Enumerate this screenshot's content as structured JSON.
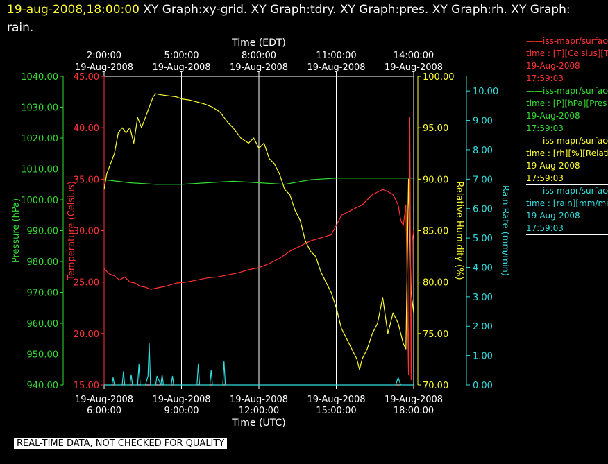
{
  "header": {
    "timestamp": "19-aug-2008,18:00:00",
    "graphs_line1": "XY Graph:xy-grid.  XY Graph:tdry.  XY Graph:pres.  XY Graph:rh.  XY Graph:",
    "graphs_line2": "rain."
  },
  "legend": [
    {
      "line1": "——iss-mapr/surface",
      "line2": "time : [T][Celsius][T",
      "date": "19-Aug-2008",
      "time": "17:59:03",
      "color": "#ff3333"
    },
    {
      "line1": "——iss-mapr/surface",
      "line2": "time : [P][hPa][Pres",
      "date": "19-Aug-2008",
      "time": "17:59:03",
      "color": "#33dd33"
    },
    {
      "line1": "——iss-mapr/surface",
      "line2": "time : [rh][%][Relati",
      "date": "19-Aug-2008",
      "time": "17:59:03",
      "color": "#ffff33"
    },
    {
      "line1": "——iss-mapr/surface",
      "line2": "time : [rain][mm/mir",
      "date": "19-Aug-2008",
      "time": "17:59:03",
      "color": "#33dddd"
    }
  ],
  "footer_note": "REAL-TIME DATA, NOT CHECKED FOR QUALITY",
  "chart_data": {
    "type": "line",
    "top_axis": {
      "title": "Time (EDT)",
      "ticks": [
        {
          "time": "2:00:00",
          "date": "19-Aug-2008"
        },
        {
          "time": "5:00:00",
          "date": "19-Aug-2008"
        },
        {
          "time": "8:00:00",
          "date": "19-Aug-2008"
        },
        {
          "time": "11:00:00",
          "date": "19-Aug-2008"
        },
        {
          "time": "14:00:00",
          "date": "19-Aug-2008"
        }
      ]
    },
    "bottom_axis": {
      "title": "Time (UTC)",
      "range_hours": [
        6,
        18
      ],
      "ticks": [
        {
          "hour": 6,
          "date": "19-Aug-2008",
          "time": "6:00:00"
        },
        {
          "hour": 9,
          "date": "19-Aug-2008",
          "time": "9:00:00"
        },
        {
          "hour": 12,
          "date": "19-Aug-2008",
          "time": "12:00:00"
        },
        {
          "hour": 15,
          "date": "19-Aug-2008",
          "time": "15:00:00"
        },
        {
          "hour": 18,
          "date": "19-Aug-2008",
          "time": "18:00:00"
        }
      ]
    },
    "axes": [
      {
        "key": "pres",
        "label": "Pressure (hPa)",
        "color": "#33dd33",
        "range": [
          940,
          1040
        ],
        "ticks": [
          "940.00",
          "950.00",
          "960.00",
          "970.00",
          "980.00",
          "990.00",
          "1000.00",
          "1010.00",
          "1020.00",
          "1030.00",
          "1040.00"
        ]
      },
      {
        "key": "temp",
        "label": "Temperature (Celsius)",
        "color": "#ff3333",
        "range": [
          15,
          45
        ],
        "ticks": [
          "15.00",
          "20.00",
          "25.00",
          "30.00",
          "35.00",
          "40.00",
          "45.00"
        ]
      },
      {
        "key": "rh",
        "label": "Relative Humidity (%)",
        "color": "#ffff33",
        "range": [
          70,
          100
        ],
        "ticks": [
          "70.00",
          "75.00",
          "80.00",
          "85.00",
          "90.00",
          "95.00",
          "100.00"
        ]
      },
      {
        "key": "rain",
        "label": "Rain Rate (mm/min)",
        "color": "#33dddd",
        "range": [
          0,
          10.5
        ],
        "ticks": [
          "0.00",
          "1.00",
          "2.00",
          "3.00",
          "4.00",
          "5.00",
          "6.00",
          "7.00",
          "8.00",
          "9.00",
          "10.00"
        ]
      }
    ],
    "grid_vertical_hours": [
      9,
      12,
      15
    ],
    "series": [
      {
        "name": "rh",
        "axis": "rh",
        "color": "#ffff33",
        "x": [
          6.0,
          6.1,
          6.25,
          6.4,
          6.55,
          6.7,
          6.85,
          7.0,
          7.15,
          7.3,
          7.45,
          7.6,
          7.75,
          7.9,
          8.0,
          8.2,
          8.5,
          8.8,
          9.0,
          9.3,
          9.6,
          9.9,
          10.2,
          10.5,
          10.8,
          11.0,
          11.3,
          11.6,
          11.8,
          12.0,
          12.2,
          12.4,
          12.6,
          12.8,
          13.0,
          13.2,
          13.4,
          13.6,
          13.8,
          14.0,
          14.2,
          14.4,
          14.6,
          14.8,
          15.0,
          15.2,
          15.4,
          15.6,
          15.8,
          15.9,
          16.0,
          16.2,
          16.4,
          16.6,
          16.8,
          17.0,
          17.2,
          17.4,
          17.6,
          17.7,
          17.8,
          17.9,
          18.0
        ],
        "values": [
          89,
          90.5,
          91.5,
          92.5,
          94.5,
          95,
          94.5,
          95,
          93.5,
          96,
          95,
          96,
          97,
          98,
          98.3,
          98.2,
          98.1,
          98,
          97.8,
          97.7,
          97.5,
          97.3,
          97,
          96.5,
          95.5,
          95,
          94,
          93.5,
          94,
          93,
          93.5,
          92,
          91.5,
          90.5,
          89,
          88.5,
          87,
          86,
          84,
          83,
          82.5,
          81,
          80,
          79,
          77.5,
          75.5,
          74.5,
          73.5,
          72.5,
          71.5,
          72.5,
          73.5,
          75,
          76,
          78.5,
          75,
          77,
          76,
          74,
          73.5,
          90,
          79,
          77
        ]
      },
      {
        "name": "pres",
        "axis": "pres",
        "color": "#33dd33",
        "x": [
          6,
          7,
          8,
          9,
          10,
          11,
          12,
          13,
          14,
          15,
          16,
          17,
          17.5,
          18
        ],
        "values": [
          1006.5,
          1005.5,
          1005,
          1005,
          1005.5,
          1006,
          1005.5,
          1005,
          1006.5,
          1007,
          1007,
          1007,
          1007,
          1007
        ]
      },
      {
        "name": "temp",
        "axis": "temp",
        "color": "#ff3333",
        "x": [
          6.0,
          6.2,
          6.4,
          6.6,
          6.8,
          7.0,
          7.2,
          7.4,
          7.6,
          7.8,
          8.0,
          8.4,
          8.8,
          9.2,
          9.6,
          10.0,
          10.4,
          10.8,
          11.2,
          11.6,
          12.0,
          12.4,
          12.8,
          13.2,
          13.6,
          14.0,
          14.4,
          14.8,
          15.0,
          15.2,
          15.6,
          16.0,
          16.4,
          16.8,
          17.0,
          17.2,
          17.4,
          17.5,
          17.6,
          17.7,
          17.8,
          17.85,
          17.9,
          17.95,
          18.0
        ],
        "values": [
          26.3,
          25.8,
          25.6,
          25.2,
          25.5,
          25.0,
          24.9,
          24.6,
          24.5,
          24.3,
          24.4,
          24.6,
          24.9,
          25.0,
          25.2,
          25.4,
          25.5,
          25.7,
          25.9,
          26.2,
          26.4,
          26.8,
          27.3,
          28,
          28.5,
          29,
          29.3,
          29.6,
          30.5,
          31.5,
          32,
          32.5,
          33.5,
          34,
          33.8,
          33.5,
          32.5,
          31,
          30.5,
          32.5,
          16,
          41,
          15.5,
          29,
          30
        ]
      },
      {
        "name": "rain",
        "axis": "rain",
        "color": "#33dddd",
        "x": [
          6.0,
          6.3,
          6.35,
          6.4,
          6.7,
          6.75,
          6.8,
          7.0,
          7.05,
          7.1,
          7.3,
          7.35,
          7.4,
          7.6,
          7.7,
          7.75,
          7.8,
          7.9,
          8.0,
          8.05,
          8.2,
          8.25,
          8.3,
          8.6,
          8.65,
          8.7,
          9.0,
          9.5,
          9.6,
          9.65,
          9.7,
          10.0,
          10.1,
          10.15,
          10.2,
          10.5,
          10.6,
          10.65,
          10.7,
          11.0,
          11.5,
          12.0,
          13.0,
          14.0,
          15.0,
          16.0,
          17.0,
          17.3,
          17.4,
          17.5,
          17.6,
          18.0
        ],
        "values": [
          0,
          0,
          0.25,
          0,
          0,
          0.45,
          0,
          0,
          0.35,
          0,
          0,
          0.7,
          0,
          0,
          0.3,
          1.4,
          0,
          0,
          0,
          0.3,
          0,
          0.35,
          0,
          0,
          0.3,
          0,
          0,
          0,
          0,
          0.7,
          0,
          0,
          0,
          0.5,
          0,
          0,
          0,
          0.8,
          0,
          0,
          0,
          0,
          0,
          0,
          0,
          0,
          0,
          0,
          0.25,
          0,
          0,
          0
        ]
      }
    ]
  }
}
